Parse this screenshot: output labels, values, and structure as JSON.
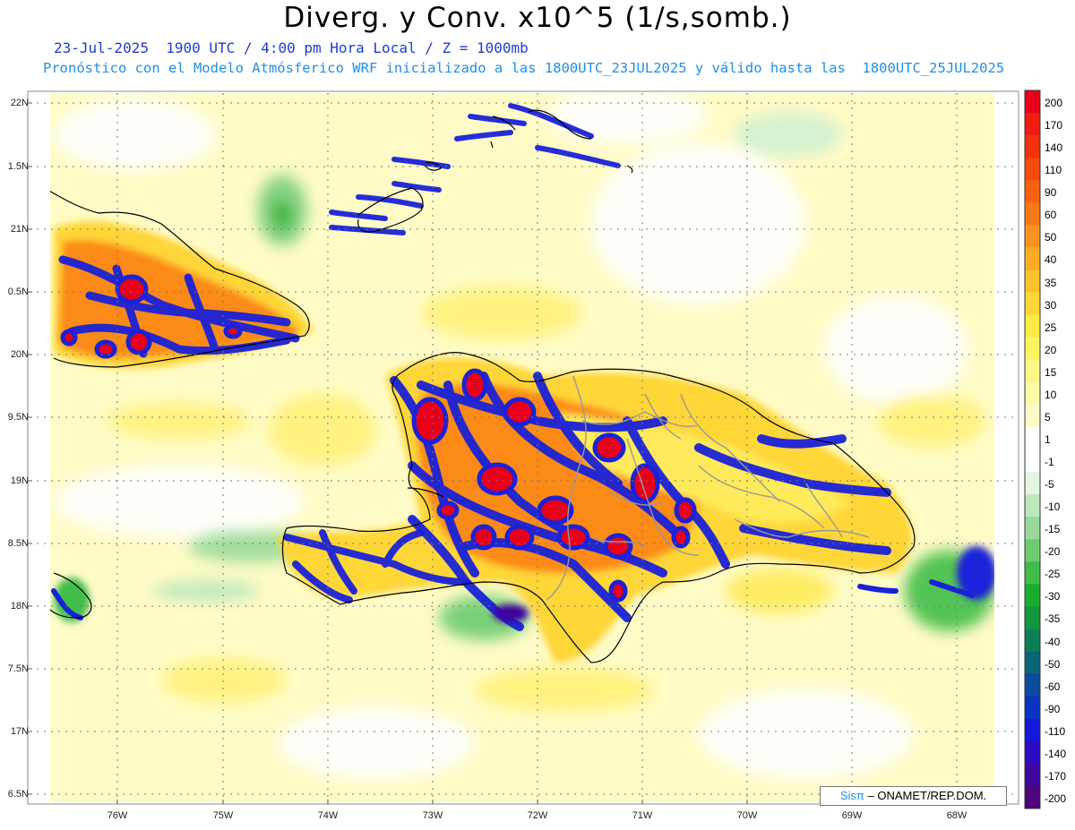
{
  "title": "Diverg. y Conv. x10^5 (1/s,somb.)",
  "subtitle_line1": "23-Jul-2025  1900 UTC / 4:00 pm Hora Local / Z = 1000mb",
  "subtitle_line2": "Pronóstico con el Modelo Atmósferico WRF inicializado a las 1800UTC_23JUL2025 y válido hasta las  1800UTC_25JUL2025",
  "lat_labels": [
    "22N",
    "1.5N",
    "21N",
    "0.5N",
    "20N",
    "9.5N",
    "19N",
    "8.5N",
    "18N",
    "7.5N",
    "17N",
    "6.5N"
  ],
  "lon_labels": [
    "76W",
    "75W",
    "74W",
    "73W",
    "72W",
    "71W",
    "70W",
    "69W",
    "68W"
  ],
  "colorbar": {
    "labels": [
      "200",
      "170",
      "140",
      "110",
      "90",
      "60",
      "50",
      "40",
      "35",
      "30",
      "25",
      "20",
      "15",
      "10",
      "5",
      "1",
      "-1",
      "-5",
      "-10",
      "-15",
      "-20",
      "-25",
      "-30",
      "-35",
      "-40",
      "-50",
      "-60",
      "-90",
      "-110",
      "-140",
      "-170",
      "-200"
    ],
    "colors": [
      "#e8001a",
      "#f21c12",
      "#f5320e",
      "#f84a0c",
      "#fa6210",
      "#fb7a18",
      "#fc9220",
      "#fdab26",
      "#fdc12e",
      "#fed638",
      "#feeb48",
      "#fff460",
      "#fff786",
      "#fffaa8",
      "#fffcc8",
      "#ffffff",
      "#ffffff",
      "#e3f6e3",
      "#bde8be",
      "#97da99",
      "#6ccc71",
      "#3fbd48",
      "#1aad2c",
      "#12973e",
      "#0b7e58",
      "#0a6577",
      "#0a4c9d",
      "#0a33c2",
      "#1418d8",
      "#2a0bc2",
      "#3f069f",
      "#4c037d"
    ]
  },
  "credit": {
    "brand": "Sisπ",
    "text": "– ONAMET/REP.DOM."
  }
}
